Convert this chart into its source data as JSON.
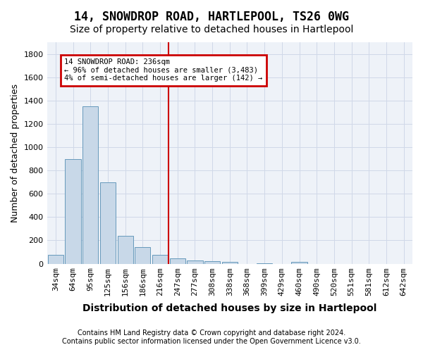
{
  "title": "14, SNOWDROP ROAD, HARTLEPOOL, TS26 0WG",
  "subtitle": "Size of property relative to detached houses in Hartlepool",
  "xlabel": "Distribution of detached houses by size in Hartlepool",
  "ylabel": "Number of detached properties",
  "footer_line1": "Contains HM Land Registry data © Crown copyright and database right 2024.",
  "footer_line2": "Contains public sector information licensed under the Open Government Licence v3.0.",
  "categories": [
    "34sqm",
    "64sqm",
    "95sqm",
    "125sqm",
    "156sqm",
    "186sqm",
    "216sqm",
    "247sqm",
    "277sqm",
    "308sqm",
    "338sqm",
    "368sqm",
    "399sqm",
    "429sqm",
    "460sqm",
    "490sqm",
    "520sqm",
    "551sqm",
    "581sqm",
    "612sqm",
    "642sqm"
  ],
  "values": [
    75,
    900,
    1350,
    700,
    240,
    140,
    75,
    45,
    30,
    20,
    15,
    0,
    5,
    0,
    15,
    0,
    0,
    0,
    0,
    0,
    0
  ],
  "bar_color": "#c8d8e8",
  "bar_edge_color": "#6699bb",
  "vline_color": "#cc0000",
  "annotation_line1": "14 SNOWDROP ROAD: 236sqm",
  "annotation_line2": "← 96% of detached houses are smaller (3,483)",
  "annotation_line3": "4% of semi-detached houses are larger (142) →",
  "annotation_box_color": "#cc0000",
  "annotation_box_fill": "#ffffff",
  "ylim": [
    0,
    1900
  ],
  "yticks": [
    0,
    200,
    400,
    600,
    800,
    1000,
    1200,
    1400,
    1600,
    1800
  ],
  "grid_color": "#d0d8e8",
  "background_color": "#eef2f8",
  "title_fontsize": 12,
  "subtitle_fontsize": 10,
  "xlabel_fontsize": 10,
  "ylabel_fontsize": 9,
  "tick_fontsize": 8,
  "footer_fontsize": 7
}
